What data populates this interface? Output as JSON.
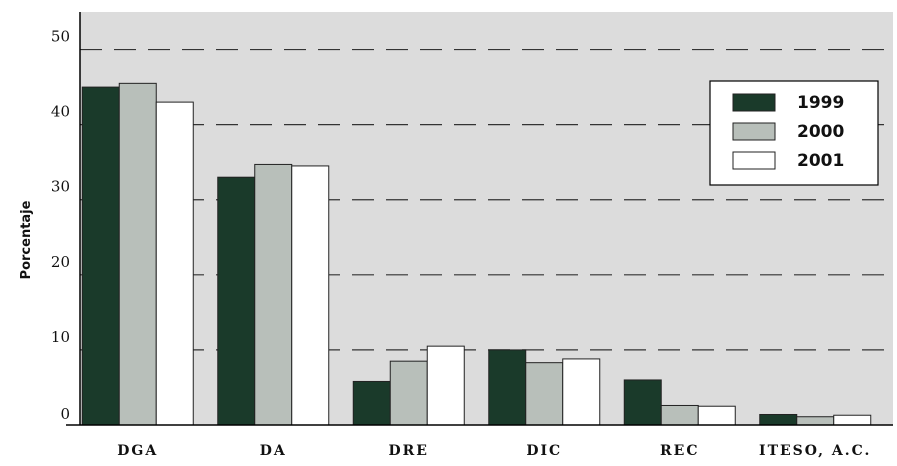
{
  "chart_data": {
    "type": "bar",
    "title": "",
    "xlabel": "",
    "ylabel": "Porcentaje",
    "ylim": [
      0,
      55
    ],
    "yticks": [
      0,
      10,
      20,
      30,
      40,
      50
    ],
    "grid": true,
    "legend_position": "top-right",
    "categories": [
      "DGA",
      "DA",
      "DRE",
      "DIC",
      "REC",
      "ITESO, A.C."
    ],
    "series": [
      {
        "name": "1999",
        "color": "#1a3a2a",
        "values": [
          45.0,
          33.0,
          5.8,
          10.0,
          6.0,
          1.4
        ]
      },
      {
        "name": "2000",
        "color": "#b8bfba",
        "values": [
          45.5,
          34.7,
          8.5,
          8.3,
          2.6,
          1.1
        ]
      },
      {
        "name": "2001",
        "color": "#ffffff",
        "values": [
          43.0,
          34.5,
          10.5,
          8.8,
          2.5,
          1.3
        ]
      }
    ]
  },
  "colors": {
    "plot_background": "#dcdcdc",
    "gridline": "#333333",
    "bar_stroke": "#222222"
  }
}
